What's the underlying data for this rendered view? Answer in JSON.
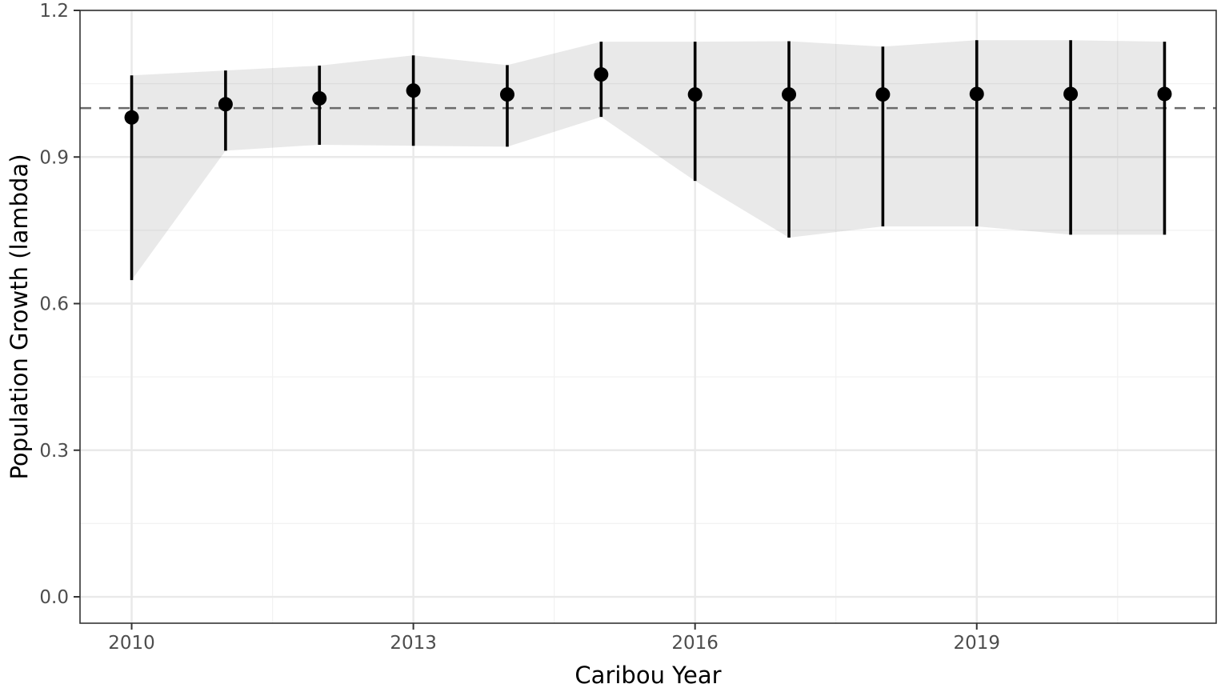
{
  "chart_data": {
    "type": "scatter",
    "subtype": "pointrange-with-ribbon",
    "title": "",
    "xlabel": "Caribou Year",
    "ylabel": "Population Growth (lambda)",
    "points": [
      {
        "year": 2010,
        "estimate": 0.981,
        "lower": 0.648,
        "upper": 1.067
      },
      {
        "year": 2011,
        "estimate": 1.008,
        "lower": 0.913,
        "upper": 1.077
      },
      {
        "year": 2012,
        "estimate": 1.02,
        "lower": 0.925,
        "upper": 1.087
      },
      {
        "year": 2013,
        "estimate": 1.036,
        "lower": 0.923,
        "upper": 1.108
      },
      {
        "year": 2014,
        "estimate": 1.028,
        "lower": 0.921,
        "upper": 1.088
      },
      {
        "year": 2015,
        "estimate": 1.069,
        "lower": 0.982,
        "upper": 1.136
      },
      {
        "year": 2016,
        "estimate": 1.028,
        "lower": 0.851,
        "upper": 1.136
      },
      {
        "year": 2017,
        "estimate": 1.028,
        "lower": 0.735,
        "upper": 1.137
      },
      {
        "year": 2018,
        "estimate": 1.028,
        "lower": 0.758,
        "upper": 1.126
      },
      {
        "year": 2019,
        "estimate": 1.029,
        "lower": 0.758,
        "upper": 1.139
      },
      {
        "year": 2020,
        "estimate": 1.029,
        "lower": 0.741,
        "upper": 1.139
      },
      {
        "year": 2021,
        "estimate": 1.029,
        "lower": 0.741,
        "upper": 1.136
      }
    ],
    "ribbon_note": "shaded confidence band follows the lower/upper bounds of each point",
    "reference_line": {
      "y": 1.0,
      "linetype": "dashed"
    },
    "x_ticks": [
      2010,
      2013,
      2016,
      2019
    ],
    "x_minor_gridlines": [
      2011.5,
      2014.5,
      2017.5,
      2020.5
    ],
    "y_ticks": [
      0.0,
      0.3,
      0.6,
      0.9,
      1.2
    ],
    "y_minor_gridlines": [
      0.15,
      0.45,
      0.75,
      1.05
    ],
    "x_domain": [
      2009.45,
      2021.55
    ],
    "y_domain": [
      -0.054,
      1.2
    ],
    "grid": true,
    "legend": "none",
    "colors": {
      "point": "#000000",
      "error_bar": "#000000",
      "ribbon": "rgba(0,0,0,0.085)",
      "reference_line": "#6a6a6a",
      "grid_major": "#e9e9e9",
      "grid_minor": "#f2f2f2",
      "panel_border": "#333333",
      "tick_mark": "#333333",
      "tick_label": "#4d4d4d",
      "axis_title": "#000000",
      "panel_background": "#ffffff"
    }
  }
}
